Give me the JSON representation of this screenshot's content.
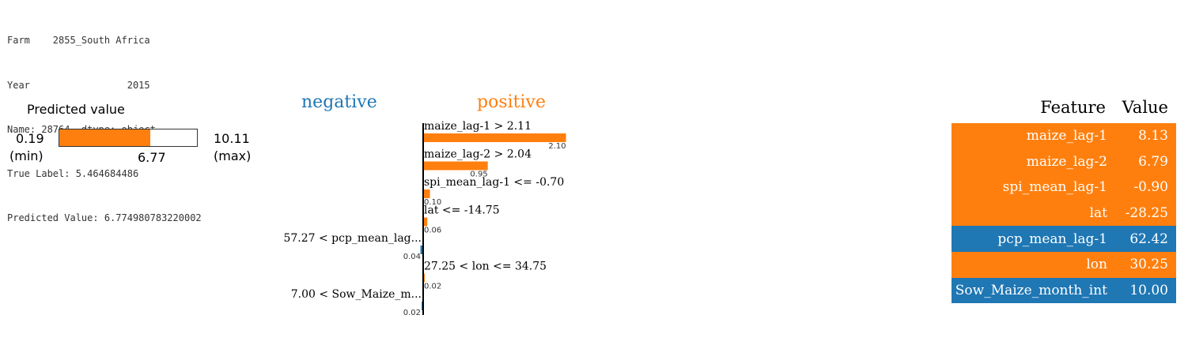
{
  "info": {
    "lines": [
      "Farm    2855_South Africa",
      "Year                 2015",
      "Name: 28764, dtype: object",
      "True Label: 5.464684486",
      "Predicted Value: 6.774980783220002"
    ]
  },
  "predicted": {
    "title": "Predicted value",
    "min": "0.19",
    "min_label": "(min)",
    "max": "10.11",
    "max_label": "(max)",
    "value": "6.77",
    "min_num": 0.19,
    "max_num": 10.11,
    "value_num": 6.77
  },
  "legend": {
    "negative": "negative",
    "positive": "positive"
  },
  "colors": {
    "positive": "#ff7f0e",
    "negative": "#1f77b4"
  },
  "chart_data": {
    "type": "bar",
    "orientation": "horizontal",
    "categories": [
      "maize_lag-1 > 2.11",
      "maize_lag-2 > 2.04",
      "spi_mean_lag-1 <= -0.70",
      "lat <= -14.75",
      "57.27 < pcp_mean_lag...",
      "27.25 < lon <= 34.75",
      "7.00 < Sow_Maize_m..."
    ],
    "values": [
      2.1,
      0.95,
      0.1,
      0.06,
      -0.04,
      0.02,
      -0.02
    ],
    "value_labels": [
      "2.10",
      "0.95",
      "0.10",
      "0.06",
      "0.04",
      "0.02",
      "0.02"
    ]
  },
  "table": {
    "header_feature": "Feature",
    "header_value": "Value",
    "rows": [
      {
        "feature": "maize_lag-1",
        "value": "8.13",
        "sign": "positive"
      },
      {
        "feature": "maize_lag-2",
        "value": "6.79",
        "sign": "positive"
      },
      {
        "feature": "spi_mean_lag-1",
        "value": "-0.90",
        "sign": "positive"
      },
      {
        "feature": "lat",
        "value": "-28.25",
        "sign": "positive"
      },
      {
        "feature": "pcp_mean_lag-1",
        "value": "62.42",
        "sign": "negative"
      },
      {
        "feature": "lon",
        "value": "30.25",
        "sign": "positive"
      },
      {
        "feature": "Sow_Maize_month_int",
        "value": "10.00",
        "sign": "negative"
      }
    ]
  }
}
